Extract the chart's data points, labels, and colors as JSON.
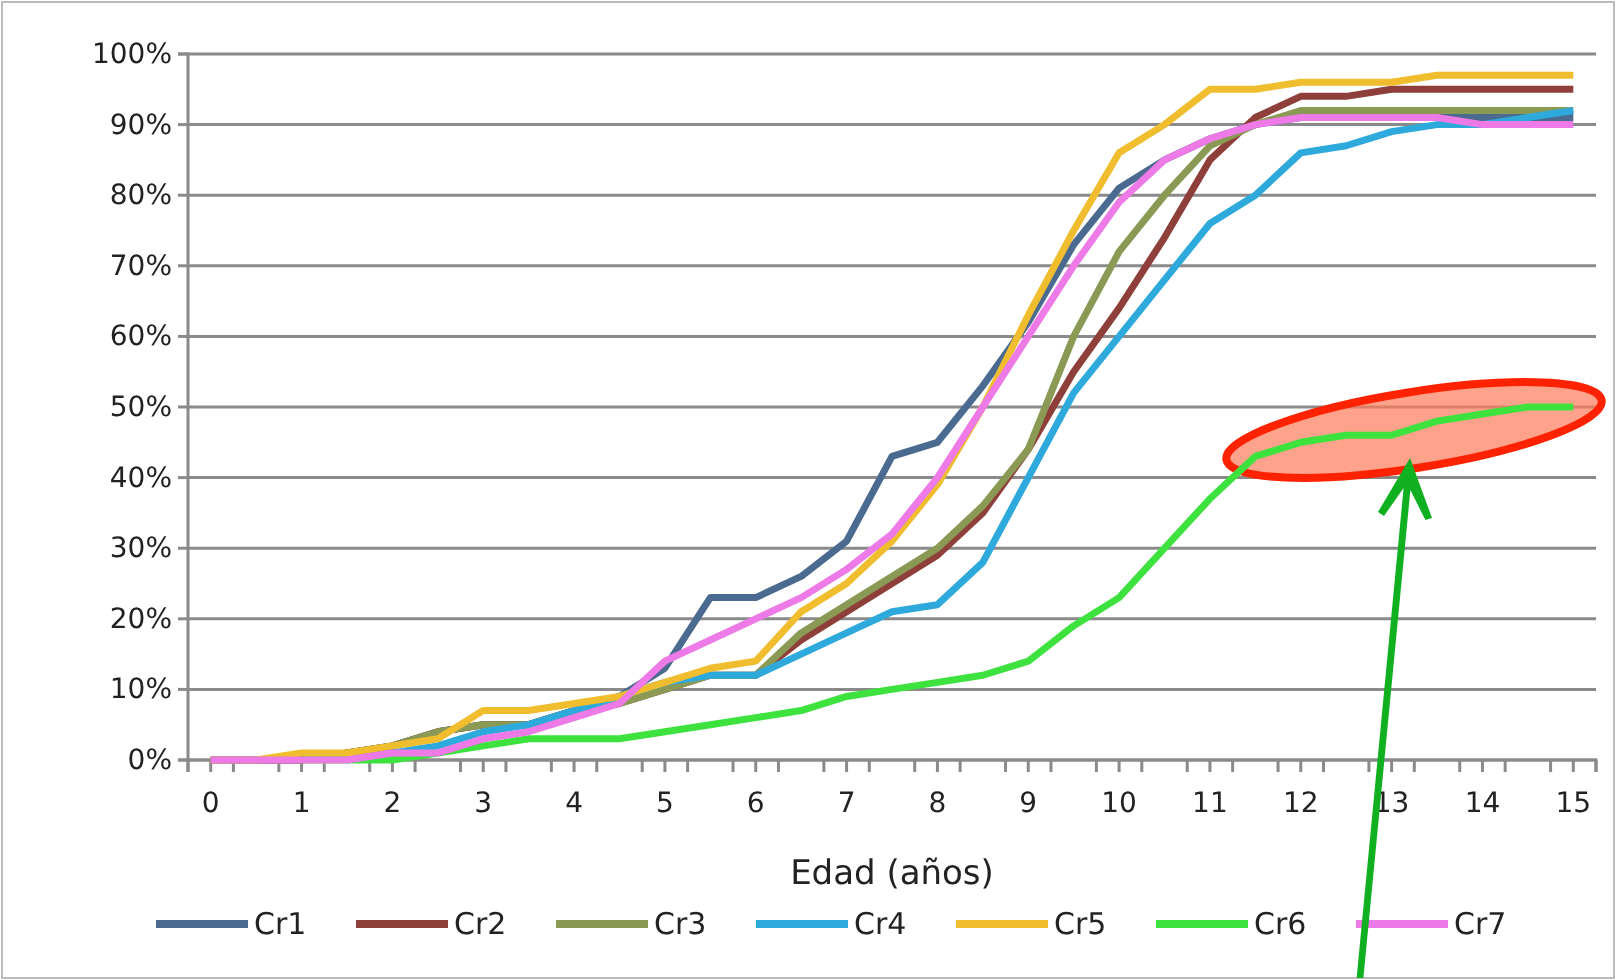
{
  "chart_data": {
    "type": "line",
    "xlabel": "Edad (años)",
    "x": [
      0,
      0.5,
      1,
      1.5,
      2,
      2.5,
      3,
      3.5,
      4,
      4.5,
      5,
      5.5,
      6,
      6.5,
      7,
      7.5,
      8,
      8.5,
      9,
      9.5,
      10,
      10.5,
      11,
      11.5,
      12,
      12.5,
      13,
      13.5,
      14,
      14.5,
      15
    ],
    "xlim": [
      -0.25,
      15.25
    ],
    "xticks": [
      0,
      1,
      2,
      3,
      4,
      5,
      6,
      7,
      8,
      9,
      10,
      11,
      12,
      13,
      14,
      15,
      {
        "value": -0.25,
        "label": null
      },
      {
        "value": 0.25,
        "label": null
      },
      {
        "value": 0.75,
        "label": null
      },
      {
        "value": 1.25,
        "label": null
      },
      {
        "value": 1.75,
        "label": null
      },
      {
        "value": 2.25,
        "label": null
      },
      {
        "value": 2.75,
        "label": null
      },
      {
        "value": 3.25,
        "label": null
      },
      {
        "value": 3.75,
        "label": null
      },
      {
        "value": 4.25,
        "label": null
      },
      {
        "value": 4.75,
        "label": null
      },
      {
        "value": 5.25,
        "label": null
      },
      {
        "value": 5.75,
        "label": null
      },
      {
        "value": 6.25,
        "label": null
      },
      {
        "value": 6.75,
        "label": null
      },
      {
        "value": 7.25,
        "label": null
      },
      {
        "value": 7.75,
        "label": null
      },
      {
        "value": 8.25,
        "label": null
      },
      {
        "value": 8.75,
        "label": null
      },
      {
        "value": 9.25,
        "label": null
      },
      {
        "value": 9.75,
        "label": null
      },
      {
        "value": 10.25,
        "label": null
      },
      {
        "value": 10.75,
        "label": null
      },
      {
        "value": 11.25,
        "label": null
      },
      {
        "value": 11.75,
        "label": null
      },
      {
        "value": 12.25,
        "label": null
      },
      {
        "value": 12.75,
        "label": null
      },
      {
        "value": 13.25,
        "label": null
      },
      {
        "value": 13.75,
        "label": null
      },
      {
        "value": 14.25,
        "label": null
      },
      {
        "value": 14.75,
        "label": null
      },
      {
        "value": 15.25,
        "label": null
      }
    ],
    "ylim": [
      0,
      100
    ],
    "yticks": [
      {
        "value": 0,
        "label": "0%"
      },
      {
        "value": 10,
        "label": "10%"
      },
      {
        "value": 20,
        "label": "20%"
      },
      {
        "value": 30,
        "label": "30%"
      },
      {
        "value": 40,
        "label": "40%"
      },
      {
        "value": 50,
        "label": "50%"
      },
      {
        "value": 60,
        "label": "60%"
      },
      {
        "value": 70,
        "label": "70%"
      },
      {
        "value": 80,
        "label": "80%"
      },
      {
        "value": 90,
        "label": "90%"
      },
      {
        "value": 100,
        "label": "100%"
      }
    ],
    "grid": "y",
    "legend": "bottom",
    "marker": "none",
    "line_style": "solid",
    "series": [
      {
        "name": "Cr1",
        "color": "#4a6a8f",
        "values": [
          0,
          0,
          0,
          1,
          2,
          4,
          5,
          5,
          7,
          9,
          13,
          23,
          23,
          26,
          31,
          43,
          45,
          53,
          62,
          73,
          81,
          85,
          88,
          90,
          91,
          91,
          91,
          91,
          91,
          91,
          91
        ]
      },
      {
        "name": "Cr2",
        "color": "#8e3f3a",
        "values": [
          0,
          0,
          0,
          1,
          2,
          4,
          5,
          5,
          7,
          8,
          10,
          12,
          12,
          17,
          21,
          25,
          29,
          35,
          44,
          55,
          64,
          74,
          85,
          91,
          94,
          94,
          95,
          95,
          95,
          95,
          95
        ]
      },
      {
        "name": "Cr3",
        "color": "#8a9a55",
        "values": [
          0,
          0,
          0,
          1,
          2,
          4,
          5,
          5,
          7,
          8,
          10,
          12,
          12,
          18,
          22,
          26,
          30,
          36,
          44,
          60,
          72,
          80,
          87,
          90,
          92,
          92,
          92,
          92,
          92,
          92,
          92
        ]
      },
      {
        "name": "Cr4",
        "color": "#2ea9dc",
        "values": [
          null,
          null,
          null,
          0,
          1,
          2,
          4,
          5,
          7,
          9,
          11,
          12,
          12,
          15,
          18,
          21,
          22,
          28,
          40,
          52,
          60,
          68,
          76,
          80,
          86,
          87,
          89,
          90,
          90,
          91,
          92
        ]
      },
      {
        "name": "Cr5",
        "color": "#f0bd2e",
        "values": [
          0,
          0,
          1,
          1,
          2,
          3,
          7,
          7,
          8,
          9,
          11,
          13,
          14,
          21,
          25,
          31,
          39,
          50,
          63,
          75,
          86,
          90,
          95,
          95,
          96,
          96,
          96,
          97,
          97,
          97,
          97
        ]
      },
      {
        "name": "Cr6",
        "color": "#3ee23e",
        "values": [
          null,
          null,
          0,
          0,
          0,
          1,
          2,
          3,
          3,
          3,
          4,
          5,
          6,
          7,
          9,
          10,
          11,
          12,
          14,
          19,
          23,
          30,
          37,
          43,
          45,
          46,
          46,
          48,
          49,
          50,
          50
        ]
      },
      {
        "name": "Cr7",
        "color": "#ee7ae8",
        "values": [
          0,
          0,
          0,
          0,
          1,
          1,
          3,
          4,
          6,
          8,
          14,
          17,
          20,
          23,
          27,
          32,
          40,
          50,
          60,
          70,
          79,
          85,
          88,
          90,
          91,
          91,
          91,
          91,
          90,
          90,
          90
        ]
      }
    ]
  }
}
